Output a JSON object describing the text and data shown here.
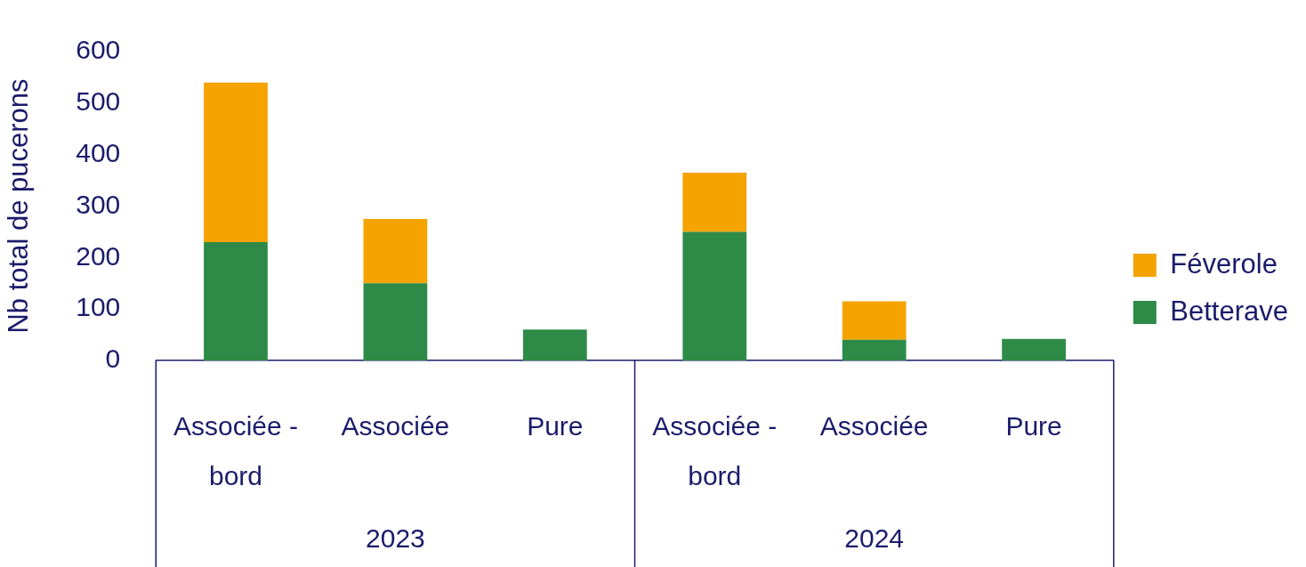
{
  "chart_data": {
    "type": "bar",
    "stacked": true,
    "ylabel": "Nb total de pucerons",
    "categories": [
      "Associée - bord",
      "Associée",
      "Pure",
      "Associée - bord",
      "Associée",
      "Pure"
    ],
    "series": [
      {
        "name": "Betterave",
        "color": "#2e8b47",
        "values": [
          230,
          150,
          60,
          250,
          40,
          42
        ]
      },
      {
        "name": "Féverole",
        "color": "#f4a300",
        "values": [
          310,
          125,
          null,
          115,
          75,
          null
        ]
      }
    ],
    "ylim": [
      0,
      600
    ],
    "yticks": [
      0,
      100,
      200,
      300,
      400,
      500,
      600
    ],
    "grid": false,
    "legend": "right",
    "annotations": [
      "2023",
      "2024"
    ]
  }
}
